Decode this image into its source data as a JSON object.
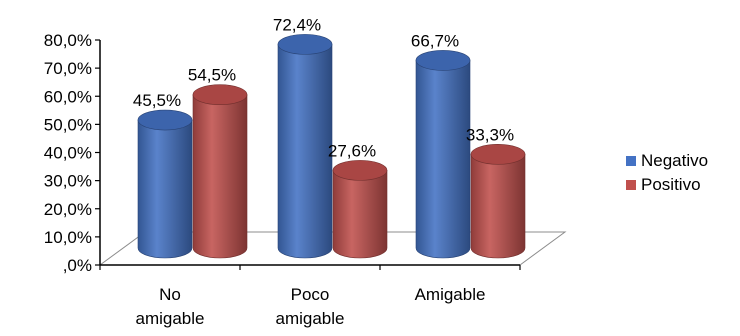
{
  "chart_data": {
    "type": "bar",
    "title": "",
    "xlabel": "",
    "ylabel": "",
    "categories": [
      [
        "No",
        "amigable"
      ],
      [
        "Poco",
        "amigable"
      ],
      [
        "Amigable"
      ]
    ],
    "series": [
      {
        "name": "Negativo",
        "color": "#4472C4",
        "values": [
          45.5,
          72.4,
          66.7
        ],
        "labels": [
          "45,5%",
          "72,4%",
          "66,7%"
        ]
      },
      {
        "name": "Positivo",
        "color": "#C0504D",
        "values": [
          54.5,
          27.6,
          33.3
        ],
        "labels": [
          "54,5%",
          "27,6%",
          "33,3%"
        ]
      }
    ],
    "ylim": [
      0,
      80
    ],
    "yticks": [
      ",0%",
      "10,0%",
      "20,0%",
      "30,0%",
      "40,0%",
      "50,0%",
      "60,0%",
      "70,0%",
      "80,0%"
    ],
    "style": "3d-cylinder",
    "grid": false,
    "legend_position": "right"
  }
}
